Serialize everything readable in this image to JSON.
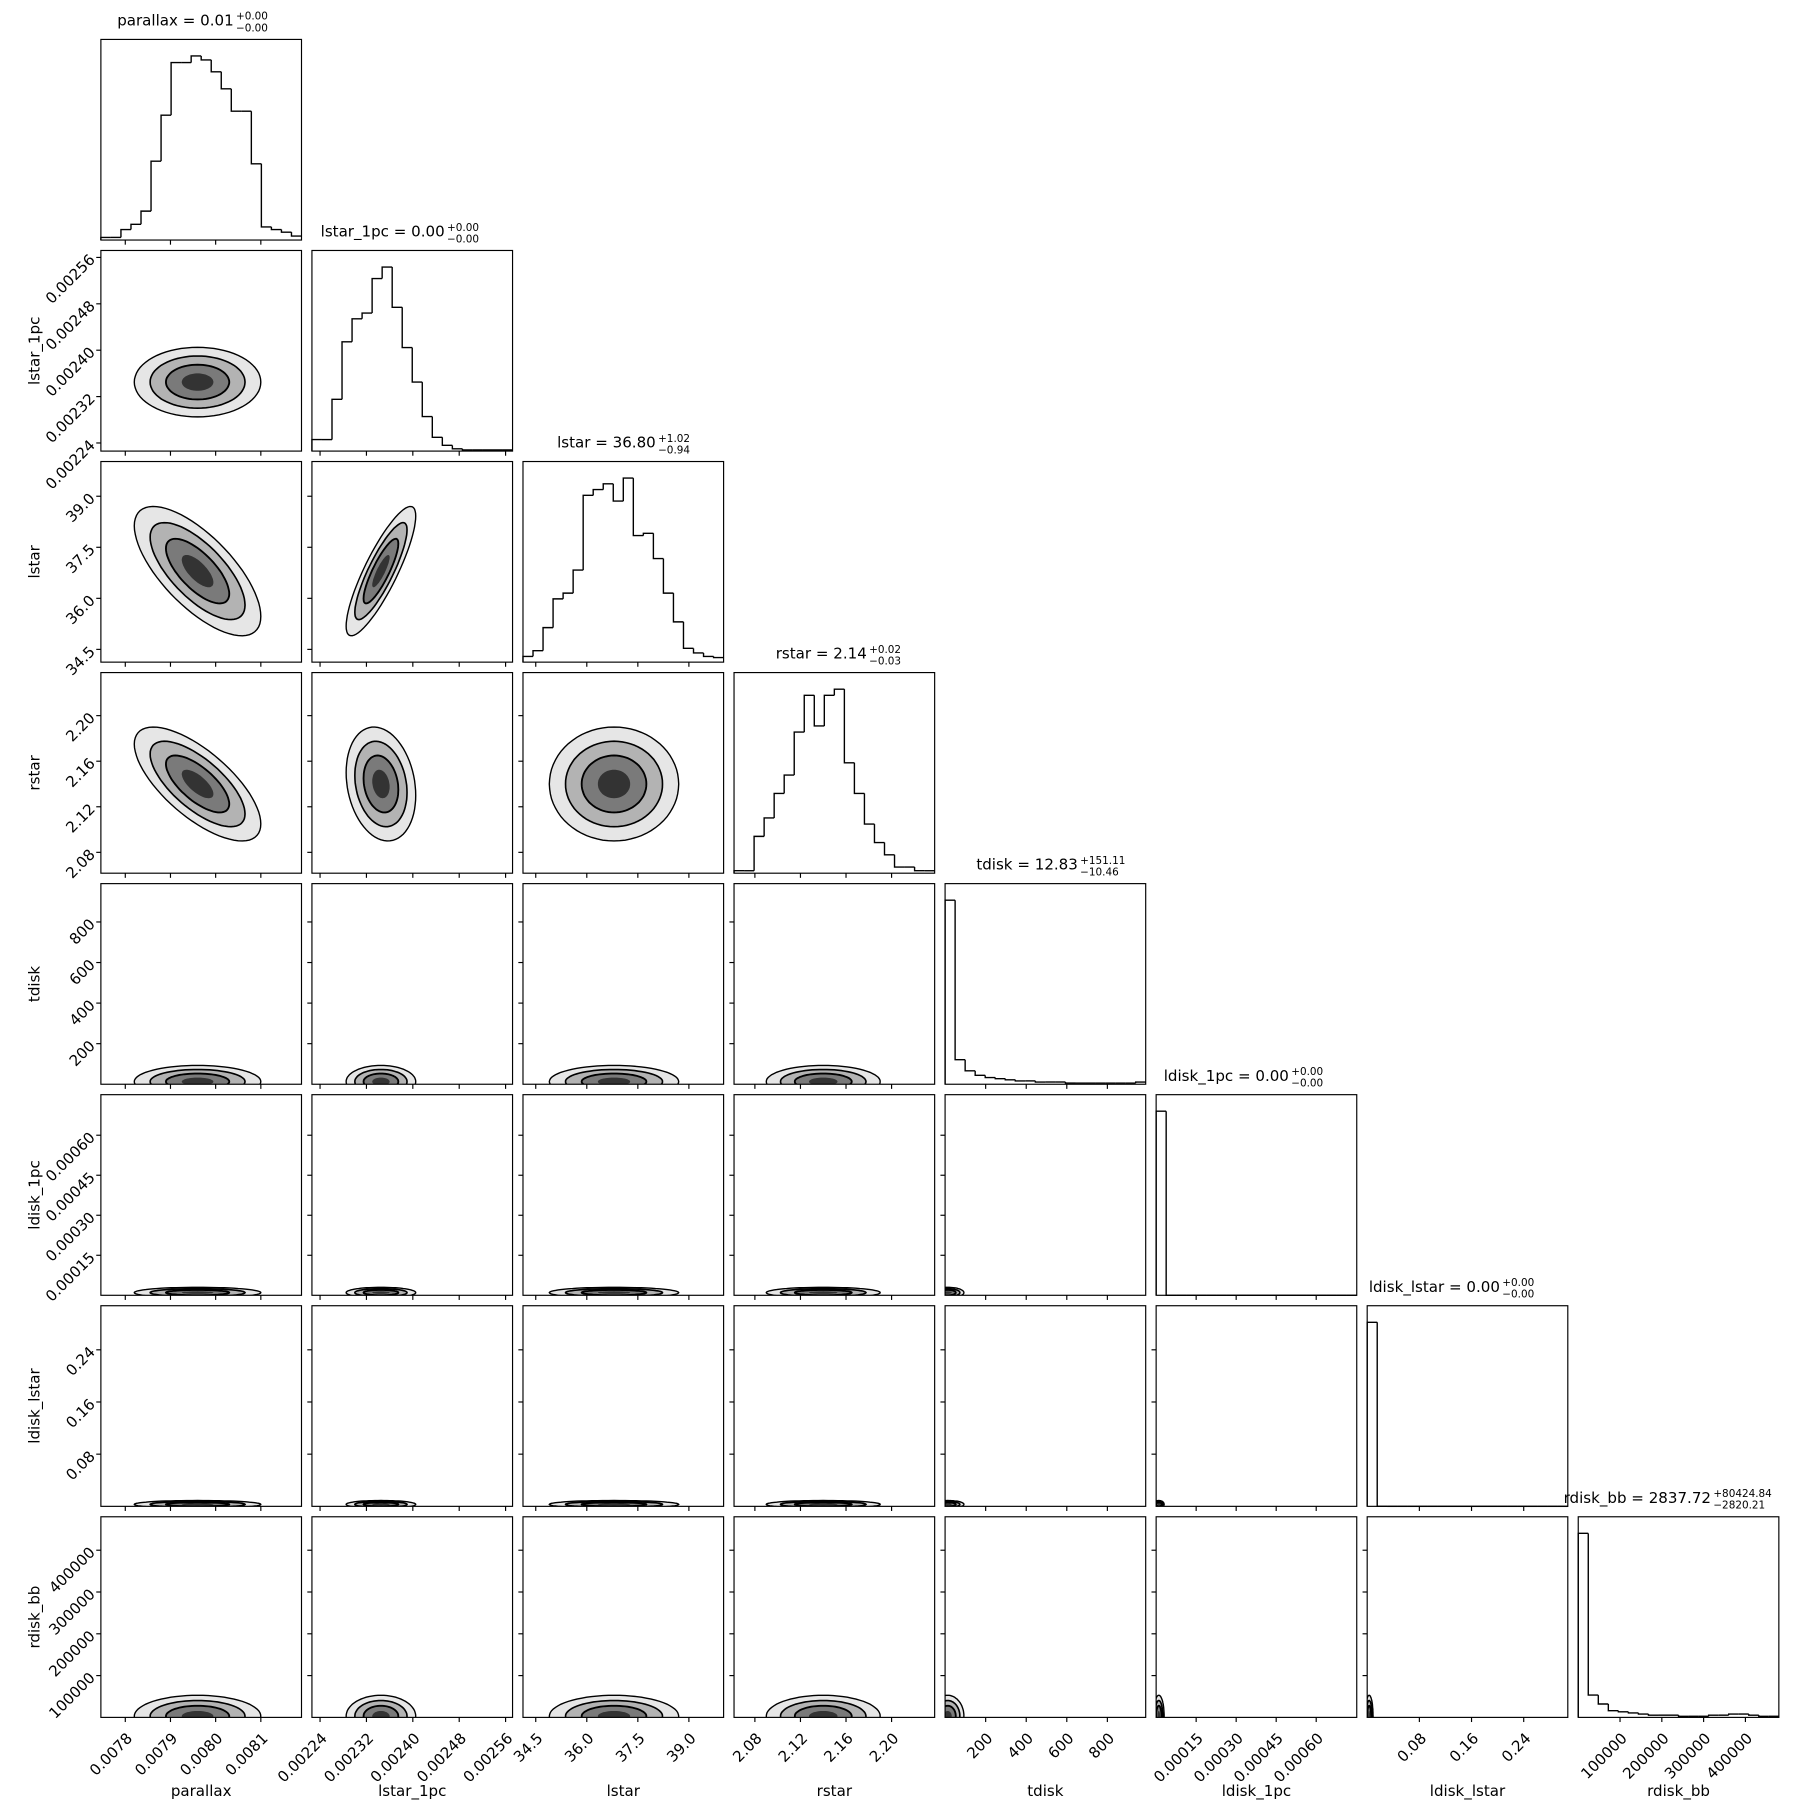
{
  "chart_data": {
    "type": "corner",
    "parameters": [
      {
        "name": "parallax",
        "title": "parallax = 0.01",
        "plus": "+0.00",
        "minus": "−0.00",
        "lim": [
          0.007746,
          0.00819
        ],
        "ticks": [
          0.0078,
          0.0079,
          {
            "value": 0.008,
            "label": "0.0080"
          },
          0.0081
        ],
        "counts": [
          2,
          2,
          8,
          12,
          22,
          60,
          95,
          135,
          135,
          140,
          137,
          128,
          115,
          98,
          98,
          58,
          10,
          8,
          6,
          3
        ],
        "center": 0.00796,
        "spread": 7e-05
      },
      {
        "name": "lstar_1pc",
        "title": "lstar_1pc = 0.00",
        "plus": "+0.00",
        "minus": "−0.00",
        "lim": [
          0.002226,
          0.002572
        ],
        "ticks": [
          0.00224,
          0.00232,
          {
            "value": 0.0024,
            "label": "0.00240"
          },
          0.00248,
          0.00256
        ],
        "counts": [
          10,
          10,
          45,
          95,
          115,
          120,
          150,
          160,
          125,
          90,
          60,
          30,
          12,
          5,
          2,
          1,
          1,
          1,
          1,
          1
        ],
        "center": 0.002345,
        "spread": 3e-05
      },
      {
        "name": "lstar",
        "title": "lstar = 36.80",
        "plus": "+1.02",
        "minus": "−0.94",
        "lim": [
          34.125,
          40.02
        ],
        "ticks": [
          34.5,
          {
            "value": 36,
            "label": "36.0"
          },
          37.5,
          {
            "value": 39,
            "label": "39.0"
          }
        ],
        "counts": [
          5,
          10,
          30,
          55,
          60,
          80,
          145,
          150,
          155,
          140,
          160,
          110,
          112,
          90,
          60,
          35,
          12,
          8,
          5,
          4
        ],
        "center": 36.8,
        "spread": 0.95
      },
      {
        "name": "rstar",
        "title": "rstar = 2.14",
        "plus": "+0.02",
        "minus": "−0.03",
        "lim": [
          2.0617,
          2.2378
        ],
        "ticks": [
          2.08,
          2.12,
          2.16,
          {
            "value": 2.2,
            "label": "2.20"
          }
        ],
        "counts": [
          2,
          2,
          30,
          45,
          65,
          80,
          115,
          145,
          120,
          145,
          150,
          90,
          65,
          40,
          25,
          15,
          5,
          5,
          2,
          2
        ],
        "center": 2.14,
        "spread": 0.025
      },
      {
        "name": "tdisk",
        "title": "tdisk = 12.83",
        "plus": "+151.11",
        "minus": "−10.46",
        "lim": [
          0,
          989
        ],
        "ticks": [
          200,
          400,
          600,
          800
        ],
        "counts": [
          165,
          22,
          12,
          8,
          6,
          5,
          4,
          3,
          3,
          2,
          2,
          2,
          1,
          1,
          1,
          1,
          1,
          1,
          1,
          2
        ],
        "center": 12.83,
        "spread": 40
      },
      {
        "name": "ldisk_1pc",
        "title": "ldisk_1pc = 0.00",
        "plus": "+0.00",
        "minus": "−0.00",
        "lim": [
          0,
          0.000752
        ],
        "ticks": [
          0.00015,
          {
            "value": 0.0003,
            "label": "0.00030"
          },
          0.00045,
          {
            "value": 0.0006,
            "label": "0.00060"
          }
        ],
        "counts": [
          170,
          0,
          0,
          0,
          0,
          0,
          0,
          0,
          0,
          0,
          0,
          0,
          0,
          0,
          0,
          0,
          0,
          0,
          0,
          0
        ],
        "center": 1e-05,
        "spread": 1e-05
      },
      {
        "name": "ldisk_lstar",
        "title": "ldisk_lstar = 0.00",
        "plus": "+0.00",
        "minus": "−0.00",
        "lim": [
          0,
          0.3076
        ],
        "ticks": [
          0.08,
          0.16,
          0.24
        ],
        "counts": [
          170,
          0,
          0,
          0,
          0,
          0,
          0,
          0,
          0,
          0,
          0,
          0,
          0,
          0,
          0,
          0,
          0,
          0,
          0,
          0
        ],
        "center": 0.003,
        "spread": 0.003
      },
      {
        "name": "rdisk_bb",
        "title": "rdisk_bb = 2837.72",
        "plus": "+80424.84",
        "minus": "−2820.21",
        "lim": [
          0,
          480000
        ],
        "ticks": [
          100000,
          200000,
          300000,
          400000
        ],
        "counts": [
          165,
          20,
          12,
          6,
          5,
          4,
          3,
          2,
          2,
          2,
          1,
          1,
          1,
          2,
          2,
          3,
          3,
          2,
          1,
          1
        ],
        "center": 2838,
        "spread": 25000
      }
    ],
    "correlations": [
      {
        "x": 0,
        "y": 2,
        "value": -0.7
      },
      {
        "x": 1,
        "y": 2,
        "value": 0.85
      },
      {
        "x": 0,
        "y": 3,
        "value": -0.7
      },
      {
        "x": 1,
        "y": 3,
        "value": -0.2
      }
    ]
  }
}
